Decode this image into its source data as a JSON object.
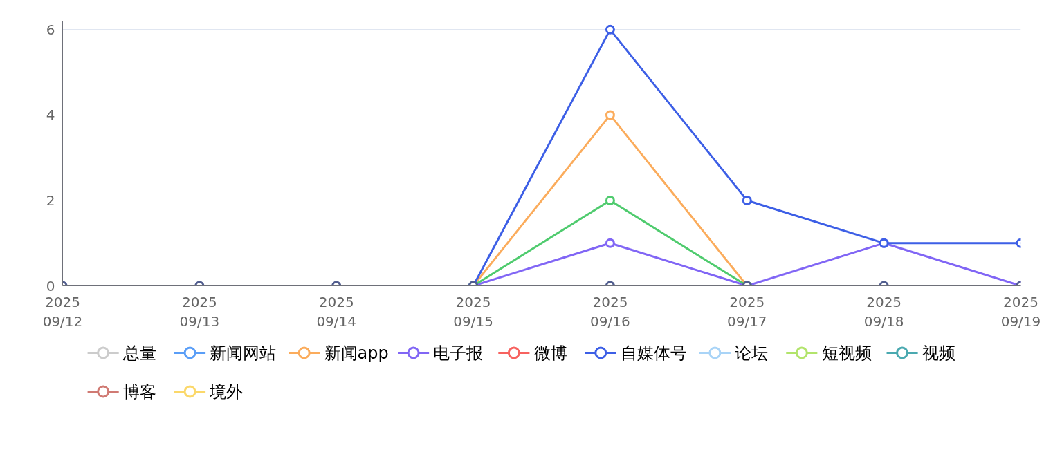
{
  "chart_data": {
    "type": "line",
    "categories": [
      "2025\n09/12",
      "2025\n09/13",
      "2025\n09/14",
      "2025\n09/15",
      "2025\n09/16",
      "2025\n09/17",
      "2025\n09/18",
      "2025\n09/19"
    ],
    "ylim": [
      0,
      6.2
    ],
    "yticks": [
      0,
      2,
      4,
      6
    ],
    "grid": "y",
    "marker": "circle",
    "legend": "bottom",
    "series": [
      {
        "name": "总量",
        "color": "#cccccc",
        "values": [
          null,
          null,
          null,
          null,
          null,
          null,
          null,
          null
        ]
      },
      {
        "name": "新闻网站",
        "color": "#5a9ef7",
        "values": [
          null,
          null,
          null,
          null,
          null,
          null,
          null,
          null
        ]
      },
      {
        "name": "新闻app",
        "color": "#fbac5c",
        "values": [
          null,
          null,
          null,
          0,
          4,
          0,
          null,
          null
        ]
      },
      {
        "name": "电子报",
        "color": "#8166f5",
        "values": [
          null,
          null,
          null,
          0,
          1,
          0,
          1,
          0
        ]
      },
      {
        "name": "微博",
        "color": "#f7625f",
        "values": [
          null,
          null,
          null,
          null,
          null,
          null,
          null,
          null
        ]
      },
      {
        "color": "#4fcb6e",
        "values": [
          null,
          null,
          null,
          0,
          2,
          0,
          null,
          null
        ]
      },
      {
        "name": "自媒体号",
        "color": "#3d5fe6",
        "values": [
          null,
          null,
          null,
          0,
          6,
          2,
          1,
          1
        ]
      },
      {
        "name": "论坛",
        "color": "#a9d4f7",
        "values": [
          null,
          null,
          null,
          null,
          null,
          null,
          null,
          null
        ]
      },
      {
        "name": "短视频",
        "color": "#b2e46b",
        "values": [
          null,
          null,
          null,
          null,
          null,
          null,
          null,
          null
        ]
      },
      {
        "name": "视频",
        "color": "#4aa9b0",
        "values": [
          null,
          null,
          null,
          null,
          null,
          null,
          null,
          null
        ]
      },
      {
        "name": "博客",
        "color": "#d07a73",
        "values": [
          null,
          null,
          null,
          null,
          null,
          null,
          null,
          null
        ]
      },
      {
        "name": "境外",
        "color": "#fbd86a",
        "values": [
          null,
          null,
          null,
          null,
          null,
          null,
          null,
          null
        ]
      },
      {
        "color": "#525e8f",
        "values": [
          0,
          0,
          0,
          0,
          0,
          0,
          0,
          0
        ]
      }
    ]
  }
}
